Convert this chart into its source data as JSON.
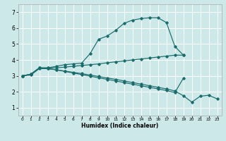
{
  "xlabel": "Humidex (Indice chaleur)",
  "background_color": "#cce8e8",
  "grid_color": "#ffffff",
  "line_color": "#1a6b6b",
  "xlim": [
    -0.5,
    23.5
  ],
  "ylim": [
    0.5,
    7.5
  ],
  "yticks": [
    1,
    2,
    3,
    4,
    5,
    6,
    7
  ],
  "xticks": [
    0,
    1,
    2,
    3,
    4,
    5,
    6,
    7,
    8,
    9,
    10,
    11,
    12,
    13,
    14,
    15,
    16,
    17,
    18,
    19,
    20,
    21,
    22,
    23
  ],
  "lines": [
    {
      "x": [
        0,
        1,
        2,
        3,
        4,
        5,
        6,
        7,
        8,
        9,
        10,
        11,
        12,
        13,
        14,
        15,
        16,
        17,
        18,
        19
      ],
      "y": [
        3.0,
        3.1,
        3.5,
        3.5,
        3.6,
        3.7,
        3.75,
        3.8,
        4.4,
        5.3,
        5.5,
        5.85,
        6.3,
        6.5,
        6.6,
        6.65,
        6.65,
        6.35,
        4.85,
        4.3
      ]
    },
    {
      "x": [
        0,
        1,
        2,
        3,
        4,
        5,
        6,
        7,
        8,
        9,
        10,
        11,
        12,
        13,
        14,
        15,
        16,
        17,
        18,
        19
      ],
      "y": [
        3.0,
        3.1,
        3.5,
        3.5,
        3.5,
        3.55,
        3.6,
        3.65,
        3.7,
        3.75,
        3.82,
        3.88,
        3.94,
        4.0,
        4.06,
        4.12,
        4.18,
        4.24,
        4.3,
        4.3
      ]
    },
    {
      "x": [
        0,
        1,
        2,
        3,
        4,
        5,
        6,
        7,
        8,
        9,
        10,
        11,
        12,
        13,
        14,
        15,
        16,
        17,
        18,
        19,
        20,
        21,
        22,
        23
      ],
      "y": [
        3.0,
        3.1,
        3.5,
        3.45,
        3.38,
        3.3,
        3.22,
        3.14,
        3.05,
        2.96,
        2.87,
        2.78,
        2.68,
        2.58,
        2.48,
        2.38,
        2.28,
        2.18,
        2.05,
        1.75,
        1.35,
        1.72,
        1.78,
        1.55
      ]
    },
    {
      "x": [
        0,
        1,
        2,
        3,
        4,
        5,
        6,
        7,
        8,
        9,
        10,
        11,
        12,
        13,
        14,
        15,
        16,
        17,
        18,
        19
      ],
      "y": [
        3.0,
        3.05,
        3.45,
        3.45,
        3.38,
        3.28,
        3.18,
        3.08,
        2.98,
        2.88,
        2.78,
        2.68,
        2.58,
        2.48,
        2.38,
        2.28,
        2.18,
        2.08,
        1.95,
        2.85
      ]
    }
  ]
}
